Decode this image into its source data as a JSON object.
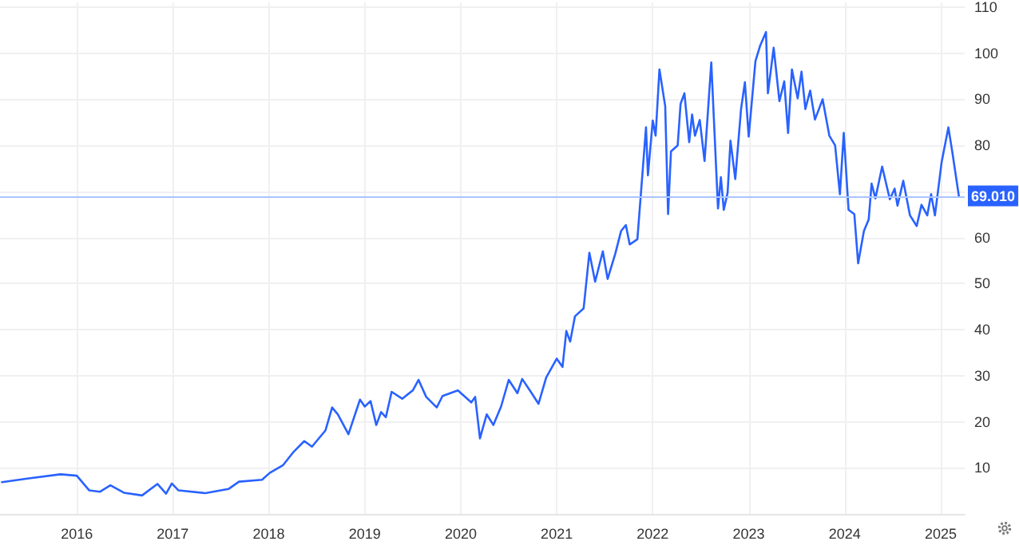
{
  "chart_data": {
    "type": "line",
    "x": [
      2015.22,
      2015.5,
      2015.83,
      2016.0,
      2016.13,
      2016.24,
      2016.35,
      2016.49,
      2016.68,
      2016.84,
      2016.93,
      2016.99,
      2017.06,
      2017.34,
      2017.58,
      2017.69,
      2017.93,
      2018.01,
      2018.15,
      2018.26,
      2018.37,
      2018.45,
      2018.59,
      2018.66,
      2018.72,
      2018.83,
      2018.95,
      2019.0,
      2019.06,
      2019.12,
      2019.17,
      2019.22,
      2019.28,
      2019.39,
      2019.5,
      2019.56,
      2019.64,
      2019.75,
      2019.81,
      2019.97,
      2020.11,
      2020.15,
      2020.2,
      2020.27,
      2020.34,
      2020.42,
      2020.5,
      2020.59,
      2020.64,
      2020.72,
      2020.81,
      2020.89,
      2021.0,
      2021.06,
      2021.1,
      2021.14,
      2021.19,
      2021.28,
      2021.34,
      2021.4,
      2021.48,
      2021.53,
      2021.61,
      2021.67,
      2021.72,
      2021.76,
      2021.84,
      2021.93,
      2021.95,
      2022.0,
      2022.03,
      2022.07,
      2022.13,
      2022.16,
      2022.19,
      2022.26,
      2022.29,
      2022.33,
      2022.38,
      2022.41,
      2022.44,
      2022.49,
      2022.54,
      2022.61,
      2022.68,
      2022.71,
      2022.74,
      2022.78,
      2022.81,
      2022.86,
      2022.92,
      2022.96,
      2023.0,
      2023.07,
      2023.12,
      2023.18,
      2023.2,
      2023.26,
      2023.32,
      2023.37,
      2023.41,
      2023.45,
      2023.51,
      2023.55,
      2023.59,
      2023.64,
      2023.69,
      2023.77,
      2023.84,
      2023.9,
      2023.95,
      2023.99,
      2024.04,
      2024.1,
      2024.14,
      2024.2,
      2024.25,
      2024.28,
      2024.32,
      2024.39,
      2024.47,
      2024.52,
      2024.55,
      2024.61,
      2024.68,
      2024.75,
      2024.8,
      2024.86,
      2024.9,
      2024.94,
      2025.01,
      2025.08,
      2025.12,
      2025.19
    ],
    "series": [
      {
        "color": "#2962ff",
        "values": [
          6.9,
          7.7,
          8.6,
          8.3,
          5.1,
          4.8,
          6.2,
          4.6,
          4.0,
          6.5,
          4.4,
          6.6,
          5.1,
          4.5,
          5.4,
          7.0,
          7.4,
          8.9,
          10.6,
          13.5,
          15.8,
          14.6,
          18.1,
          23.1,
          21.6,
          17.3,
          24.8,
          23.3,
          24.5,
          19.3,
          22.1,
          21.0,
          26.5,
          25.0,
          26.8,
          29.1,
          25.4,
          23.1,
          25.6,
          26.8,
          24.2,
          25.4,
          16.4,
          21.6,
          19.3,
          23.3,
          29.1,
          26.2,
          29.3,
          26.8,
          23.9,
          29.6,
          33.7,
          31.9,
          39.7,
          37.4,
          42.9,
          44.6,
          56.7,
          50.4,
          57.0,
          51.0,
          56.5,
          61.4,
          62.7,
          58.5,
          59.6,
          83.9,
          73.5,
          85.4,
          82.1,
          96.5,
          88.5,
          65.1,
          78.7,
          80.0,
          89.0,
          91.3,
          80.7,
          86.7,
          82.1,
          85.5,
          76.6,
          98.0,
          66.3,
          73.1,
          66.0,
          69.7,
          81.0,
          72.7,
          87.9,
          93.7,
          81.9,
          98.3,
          101.7,
          104.6,
          91.3,
          101.2,
          89.6,
          93.9,
          82.7,
          96.5,
          90.2,
          96.0,
          87.9,
          91.9,
          85.6,
          90.0,
          82.1,
          80.0,
          69.4,
          82.7,
          66.0,
          65.1,
          54.4,
          61.4,
          63.9,
          71.7,
          68.5,
          75.4,
          68.3,
          70.6,
          66.9,
          72.3,
          64.8,
          62.5,
          67.1,
          64.8,
          69.4,
          64.8,
          76.4,
          83.9,
          78.7,
          68.9
        ]
      }
    ],
    "xlim": [
      2015.2,
      2025.25
    ],
    "xticks": [
      2016,
      2017,
      2018,
      2019,
      2020,
      2021,
      2022,
      2023,
      2024,
      2025
    ],
    "ylim": [
      0,
      111
    ],
    "yticks": [
      {
        "value": 0,
        "label": null
      },
      10,
      20,
      30,
      40,
      50,
      60,
      {
        "value": 70,
        "label": null
      },
      80,
      90,
      100,
      110
    ],
    "ref_lines": [
      {
        "axis": "y",
        "value": 69.01,
        "label": "69.010",
        "color": "#a8c4ff"
      }
    ],
    "grid": true,
    "marker": "none",
    "line_style": "solid"
  }
}
